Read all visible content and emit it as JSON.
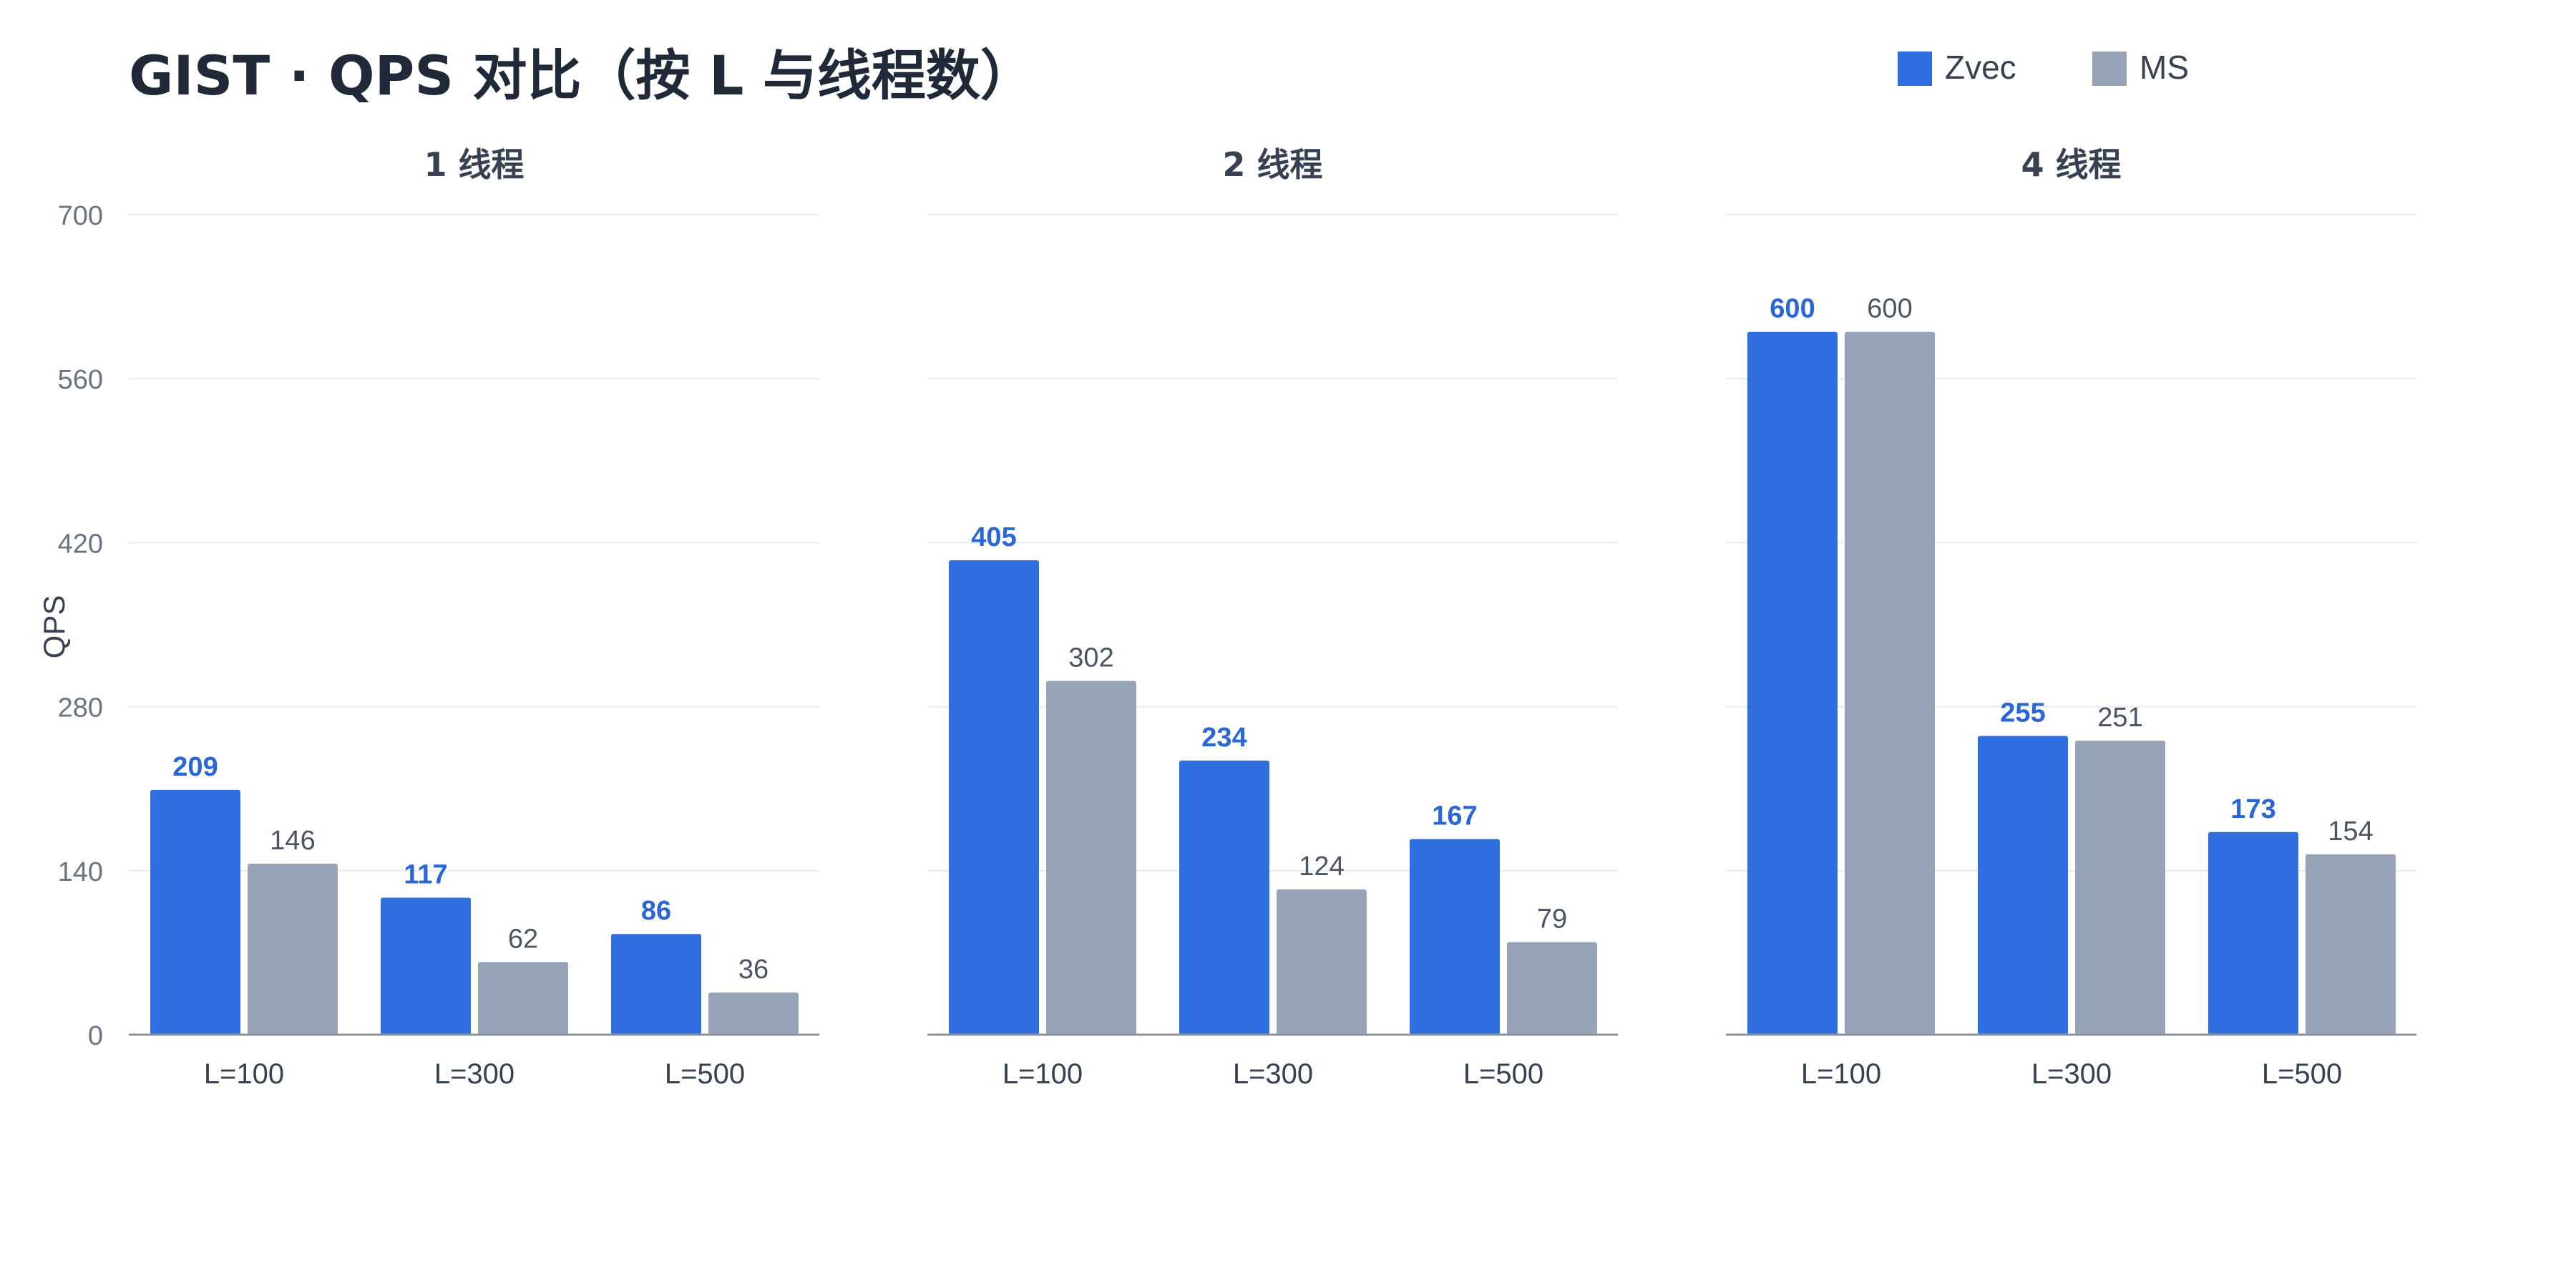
{
  "chart_data": {
    "type": "bar",
    "title": "GIST · QPS 对比（按 L 与线程数）",
    "ylabel": "QPS",
    "ylim": [
      0,
      700
    ],
    "yticks": [
      0,
      140,
      280,
      420,
      560,
      700
    ],
    "grid": true,
    "legend_position": "top-right",
    "categories": [
      "L=100",
      "L=300",
      "L=500"
    ],
    "series_names": [
      "Zvec",
      "MS"
    ],
    "colors": {
      "Zvec": "#306fe0",
      "MS": "#97a4b8",
      "zvec_label": "#2a66d6",
      "ms_label": "#4b5563"
    },
    "panels": [
      {
        "title": "1 线程",
        "series": [
          {
            "name": "Zvec",
            "values": [
              209,
              117,
              86
            ]
          },
          {
            "name": "MS",
            "values": [
              146,
              62,
              36
            ]
          }
        ]
      },
      {
        "title": "2 线程",
        "series": [
          {
            "name": "Zvec",
            "values": [
              405,
              234,
              167
            ]
          },
          {
            "name": "MS",
            "values": [
              302,
              124,
              79
            ]
          }
        ]
      },
      {
        "title": "4 线程",
        "series": [
          {
            "name": "Zvec",
            "values": [
              600,
              255,
              173
            ]
          },
          {
            "name": "MS",
            "values": [
              600,
              251,
              154
            ]
          }
        ]
      }
    ]
  }
}
